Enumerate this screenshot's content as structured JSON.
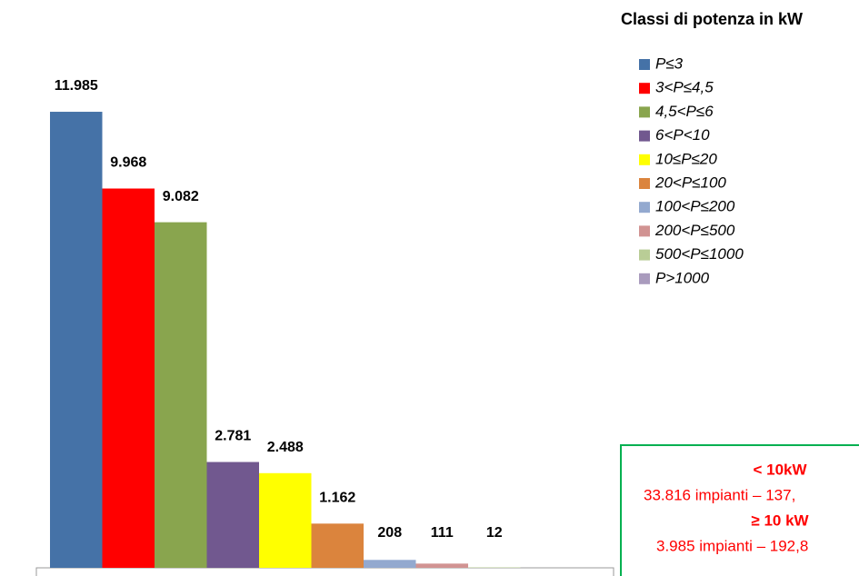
{
  "chart_data": {
    "type": "bar",
    "legend_title": "Classi di potenza in kW",
    "categories": [
      "P≤3",
      "3<P≤4,5",
      "4,5<P≤6",
      "6<P<10",
      "10≤P≤20",
      "20<P≤100",
      "100<P≤200",
      "200<P≤500",
      "500<P≤1000",
      "P>1000"
    ],
    "values": [
      11985,
      9968,
      9082,
      2781,
      2488,
      1162,
      208,
      111,
      12,
      null
    ],
    "value_labels": [
      "11.985",
      "9.968",
      "9.082",
      "2.781",
      "2.488",
      "1.162",
      "208",
      "111",
      "12",
      null
    ],
    "colors": [
      "#4572a7",
      "#ff0000",
      "#89a54e",
      "#71588f",
      "#ffff00",
      "#db843d",
      "#93a9cf",
      "#d19392",
      "#b9cd96",
      "#a99bbd"
    ],
    "ylim": [
      0,
      12000
    ],
    "annotation": {
      "lines": [
        "< 10kW",
        "33.816 impianti – 137,",
        "≥ 10 kW",
        "3.985 impianti – 192,8"
      ]
    }
  }
}
